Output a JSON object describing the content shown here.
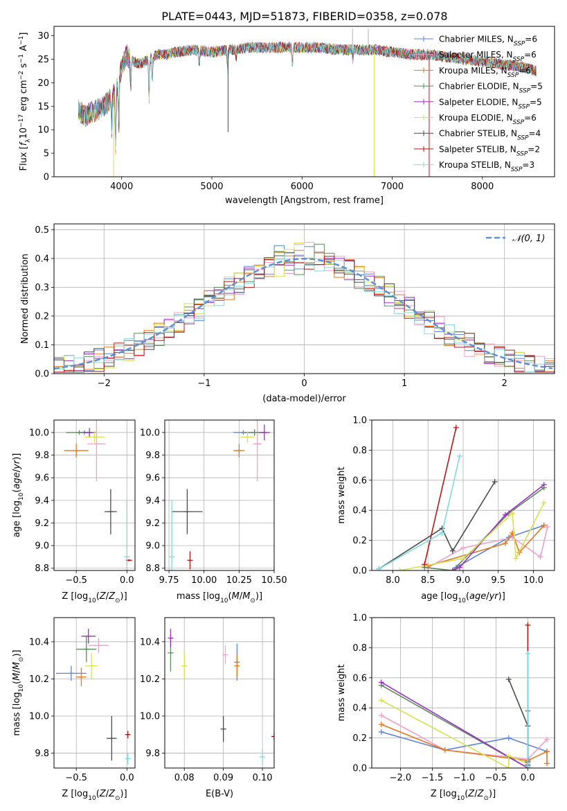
{
  "figure": {
    "title": "PLATE=0443, MJD=51873, FIBERID=0358, z=0.078"
  },
  "colors": {
    "chabrier_miles": "#5b82d6",
    "salpeter_miles": "#f0a0c8",
    "kroupa_miles": "#e07820",
    "chabrier_elodie": "#5a8a5a",
    "salpeter_elodie": "#9a30c0",
    "kroupa_elodie": "#d8e050",
    "chabrier_stelib": "#4a4a4a",
    "salpeter_stelib": "#b01818",
    "kroupa_stelib": "#80d8e0",
    "normal_curve": "#5b8fd8",
    "grid": "#b0b0b0",
    "axis": "#000000"
  },
  "chart_data": [
    {
      "type": "line",
      "id": "spectrum",
      "title": "PLATE=0443, MJD=51873, FIBERID=0358, z=0.078",
      "xlabel": "wavelength [Angstrom, rest frame]",
      "ylabel": "Flux [f_λ10^-17 erg cm^-2 s^-1 A^-1]",
      "xlim": [
        3250,
        8800
      ],
      "ylim": [
        0,
        32
      ],
      "xticks": [
        4000,
        5000,
        6000,
        7000,
        8000
      ],
      "yticks": [
        0,
        5,
        10,
        15,
        20,
        25,
        30
      ],
      "grid": false,
      "legend_position": "top-right",
      "legend": [
        {
          "label": "Chabrier MILES, N",
          "sub": "SSP",
          "suffix": "=6",
          "color_key": "chabrier_miles"
        },
        {
          "label": "Salpeter MILES, N",
          "sub": "SSP",
          "suffix": "=6",
          "color_key": "salpeter_miles"
        },
        {
          "label": "Kroupa MILES, N",
          "sub": "SSP",
          "suffix": "=6",
          "color_key": "kroupa_miles"
        },
        {
          "label": "Chabrier ELODIE, N",
          "sub": "SSP",
          "suffix": "=5",
          "color_key": "chabrier_elodie"
        },
        {
          "label": "Salpeter ELODIE, N",
          "sub": "SSP",
          "suffix": "=5",
          "color_key": "salpeter_elodie"
        },
        {
          "label": "Kroupa ELODIE, N",
          "sub": "SSP",
          "suffix": "=6",
          "color_key": "kroupa_elodie"
        },
        {
          "label": "Chabrier STELIB, N",
          "sub": "SSP",
          "suffix": "=4",
          "color_key": "chabrier_stelib"
        },
        {
          "label": "Salpeter STELIB, N",
          "sub": "SSP",
          "suffix": "=2",
          "color_key": "salpeter_stelib"
        },
        {
          "label": "Kroupa STELIB, N",
          "sub": "SSP",
          "suffix": "=3",
          "color_key": "kroupa_stelib"
        }
      ],
      "continuum": {
        "x": [
          3520,
          3600,
          3700,
          3800,
          3900,
          3950,
          4000,
          4050,
          4100,
          4200,
          4300,
          4400,
          4500,
          4600,
          4800,
          5000,
          5200,
          5400,
          5600,
          5800,
          6000,
          6200,
          6400,
          6600,
          6800,
          7000,
          7200,
          7400,
          7600,
          7800,
          8000,
          8200,
          8400,
          8600
        ],
        "y": [
          14,
          13,
          14,
          15,
          17,
          19,
          23,
          26,
          25,
          24,
          25,
          26,
          26,
          26.5,
          27,
          26.5,
          27,
          27.5,
          27.5,
          27.5,
          27.5,
          27.5,
          27,
          27,
          27,
          26.5,
          26,
          26,
          25.5,
          25,
          24.5,
          24,
          23.5,
          22.5
        ]
      },
      "absorption_lines": [
        {
          "x": 3890,
          "depth": 7
        },
        {
          "x": 3933,
          "depth": 12
        },
        {
          "x": 3968,
          "depth": 10
        },
        {
          "x": 4101,
          "depth": 6
        },
        {
          "x": 4304,
          "depth": 10
        },
        {
          "x": 4340,
          "depth": 5
        },
        {
          "x": 4861,
          "depth": 3
        },
        {
          "x": 5175,
          "depth": 4
        },
        {
          "x": 5270,
          "depth": 2
        },
        {
          "x": 5893,
          "depth": 4
        },
        {
          "x": 6563,
          "depth": 2
        }
      ],
      "spikes": [
        {
          "x": 5180,
          "y": 9.5,
          "color_key": "chabrier_stelib"
        },
        {
          "x": 6560,
          "y": 31.5,
          "color_key": "grid"
        },
        {
          "x": 6735,
          "y": 31.5,
          "color_key": "grid"
        },
        {
          "x": 6800,
          "y": 0,
          "color_key": "kroupa_elodie"
        },
        {
          "x": 3910,
          "y": 0,
          "color_key": "kroupa_elodie"
        },
        {
          "x": 7410,
          "y": 0,
          "color_key": "salpeter_stelib"
        }
      ]
    },
    {
      "type": "bar",
      "id": "residuals",
      "xlabel": "(data-model)/error",
      "ylabel": "Normed distribution",
      "xlim": [
        -2.5,
        2.5
      ],
      "ylim": [
        0,
        0.52
      ],
      "xticks": [
        -2,
        -1,
        0,
        1,
        2
      ],
      "yticks": [
        0.0,
        0.1,
        0.2,
        0.3,
        0.4,
        0.5
      ],
      "grid": true,
      "legend_position": "top-right",
      "legend": [
        {
          "label": "𝒩(0, 1)",
          "color_key": "normal_curve",
          "style": "dashed"
        }
      ],
      "normal_curve": {
        "mean": 0,
        "sigma": 1
      }
    },
    {
      "type": "scatter",
      "id": "age_vs_Z",
      "xlabel": "Z [log10(Z/Z⊙)]",
      "ylabel": "age [log10(age/yr)]",
      "xlim": [
        -0.72,
        0.08
      ],
      "ylim": [
        8.78,
        10.11
      ],
      "xticks": [
        -0.5,
        0.0
      ],
      "yticks": [
        8.8,
        9.0,
        9.2,
        9.4,
        9.6,
        9.8,
        10.0
      ],
      "grid": true,
      "points": [
        {
          "color_key": "chabrier_miles",
          "x": -0.42,
          "y": 10.0,
          "xerr": 0.06,
          "yerr": 0.02
        },
        {
          "color_key": "salpeter_miles",
          "x": -0.3,
          "y": 9.9,
          "xerr": 0.09,
          "yerr": 0.33
        },
        {
          "color_key": "kroupa_miles",
          "x": -0.5,
          "y": 9.84,
          "xerr": 0.12,
          "yerr": 0.06
        },
        {
          "color_key": "chabrier_elodie",
          "x": -0.47,
          "y": 10.0,
          "xerr": 0.13,
          "yerr": 0.02
        },
        {
          "color_key": "salpeter_elodie",
          "x": -0.37,
          "y": 10.0,
          "xerr": 0.06,
          "yerr": 0.04
        },
        {
          "color_key": "kroupa_elodie",
          "x": -0.32,
          "y": 9.96,
          "xerr": 0.1,
          "yerr": 0.05
        },
        {
          "color_key": "chabrier_stelib",
          "x": -0.16,
          "y": 9.3,
          "xerr": 0.06,
          "yerr": 0.2
        },
        {
          "color_key": "salpeter_stelib",
          "x": 0.02,
          "y": 8.87,
          "xerr": 0.03,
          "yerr": 0.01
        },
        {
          "color_key": "kroupa_stelib",
          "x": 0.0,
          "y": 8.9,
          "xerr": 0.02,
          "yerr": 0.5
        }
      ]
    },
    {
      "type": "scatter",
      "id": "age_vs_mass",
      "xlabel": "mass [log10(M/M⊙)]",
      "ylabel": "",
      "xlim": [
        9.72,
        10.5
      ],
      "ylim": [
        8.78,
        10.11
      ],
      "xticks": [
        9.75,
        10.0,
        10.25,
        10.5
      ],
      "xtick_labels": [
        "9.75",
        "10.00",
        "10.25",
        "10.50"
      ],
      "yticks": [
        8.8,
        9.0,
        9.2,
        9.4,
        9.6,
        9.8,
        10.0
      ],
      "grid": true,
      "points": [
        {
          "color_key": "chabrier_miles",
          "x": 10.28,
          "y": 10.0,
          "xerr": 0.07,
          "yerr": 0.02
        },
        {
          "color_key": "salpeter_miles",
          "x": 10.38,
          "y": 9.9,
          "xerr": 0.03,
          "yerr": 0.33
        },
        {
          "color_key": "kroupa_miles",
          "x": 10.25,
          "y": 9.84,
          "xerr": 0.04,
          "yerr": 0.06
        },
        {
          "color_key": "chabrier_elodie",
          "x": 10.36,
          "y": 10.0,
          "xerr": 0.07,
          "yerr": 0.03
        },
        {
          "color_key": "salpeter_elodie",
          "x": 10.43,
          "y": 10.0,
          "xerr": 0.04,
          "yerr": 0.07
        },
        {
          "color_key": "kroupa_elodie",
          "x": 10.31,
          "y": 9.96,
          "xerr": 0.05,
          "yerr": 0.05
        },
        {
          "color_key": "chabrier_stelib",
          "x": 9.88,
          "y": 9.3,
          "xerr": 0.11,
          "yerr": 0.2
        },
        {
          "color_key": "salpeter_stelib",
          "x": 9.9,
          "y": 8.87,
          "xerr": 0.0,
          "yerr": 0.08
        },
        {
          "color_key": "kroupa_stelib",
          "x": 9.77,
          "y": 8.9,
          "xerr": 0.0,
          "yerr": 0.5
        }
      ]
    },
    {
      "type": "line",
      "id": "weights_vs_age",
      "xlabel": "age  [log10(age/yr)]",
      "ylabel": "mass weight",
      "xlim": [
        7.7,
        10.3
      ],
      "ylim": [
        0,
        1.0
      ],
      "xticks": [
        8.0,
        8.5,
        9.0,
        9.5,
        10.0
      ],
      "yticks": [
        0.0,
        0.2,
        0.4,
        0.6,
        0.8,
        1.0
      ],
      "grid": true,
      "series": [
        {
          "color_key": "chabrier_miles",
          "x": [
            8.9,
            9.65,
            10.15
          ],
          "y": [
            0.02,
            0.22,
            0.3
          ]
        },
        {
          "color_key": "salpeter_miles",
          "x": [
            8.5,
            9.0,
            9.7,
            10.1,
            10.2
          ],
          "y": [
            0.02,
            0.15,
            0.22,
            0.09,
            0.29
          ]
        },
        {
          "color_key": "kroupa_miles",
          "x": [
            8.5,
            9.6,
            9.7,
            9.8,
            10.15
          ],
          "y": [
            0.03,
            0.18,
            0.25,
            0.12,
            0.3
          ]
        },
        {
          "color_key": "chabrier_elodie",
          "x": [
            8.45,
            8.85,
            9.65,
            10.15
          ],
          "y": [
            0.02,
            0.0,
            0.38,
            0.55
          ]
        },
        {
          "color_key": "salpeter_elodie",
          "x": [
            8.85,
            8.95,
            9.6,
            10.15
          ],
          "y": [
            0.0,
            0.02,
            0.37,
            0.57
          ]
        },
        {
          "color_key": "kroupa_elodie",
          "x": [
            8.1,
            9.0,
            9.7,
            9.75,
            10.15
          ],
          "y": [
            0.0,
            0.08,
            0.38,
            0.08,
            0.45
          ]
        },
        {
          "color_key": "chabrier_stelib",
          "x": [
            7.8,
            8.7,
            8.85,
            9.45
          ],
          "y": [
            0.01,
            0.28,
            0.13,
            0.59
          ]
        },
        {
          "color_key": "salpeter_stelib",
          "x": [
            8.45,
            8.9
          ],
          "y": [
            0.04,
            0.95
          ]
        },
        {
          "color_key": "kroupa_stelib",
          "x": [
            7.8,
            8.7,
            8.95
          ],
          "y": [
            0.01,
            0.25,
            0.76
          ]
        }
      ]
    },
    {
      "type": "scatter",
      "id": "mass_vs_Z",
      "xlabel": "Z [log10(Z/Z⊙)]",
      "ylabel": "mass [log10(M/M⊙)]",
      "xlim": [
        -0.72,
        0.08
      ],
      "ylim": [
        9.72,
        10.53
      ],
      "xticks": [
        -0.5,
        0.0
      ],
      "yticks": [
        9.8,
        10.0,
        10.2,
        10.4
      ],
      "grid": true,
      "points": [
        {
          "color_key": "chabrier_miles",
          "x": -0.55,
          "y": 10.23,
          "xerr": 0.15,
          "yerr": 0.04
        },
        {
          "color_key": "salpeter_miles",
          "x": -0.28,
          "y": 10.38,
          "xerr": 0.1,
          "yerr": 0.04
        },
        {
          "color_key": "kroupa_miles",
          "x": -0.45,
          "y": 10.21,
          "xerr": 0.05,
          "yerr": 0.05
        },
        {
          "color_key": "chabrier_elodie",
          "x": -0.4,
          "y": 10.36,
          "xerr": 0.1,
          "yerr": 0.07
        },
        {
          "color_key": "salpeter_elodie",
          "x": -0.38,
          "y": 10.43,
          "xerr": 0.07,
          "yerr": 0.04
        },
        {
          "color_key": "kroupa_elodie",
          "x": -0.35,
          "y": 10.27,
          "xerr": 0.06,
          "yerr": 0.07
        },
        {
          "color_key": "chabrier_stelib",
          "x": -0.15,
          "y": 9.88,
          "xerr": 0.05,
          "yerr": 0.12
        },
        {
          "color_key": "salpeter_stelib",
          "x": 0.01,
          "y": 9.9,
          "xerr": 0.02,
          "yerr": 0.02
        },
        {
          "color_key": "kroupa_stelib",
          "x": 0.01,
          "y": 9.77,
          "xerr": 0.02,
          "yerr": 0.03
        }
      ]
    },
    {
      "type": "scatter",
      "id": "mass_vs_ebv",
      "xlabel": "E(B-V)",
      "ylabel": "",
      "xlim": [
        0.075,
        0.103
      ],
      "ylim": [
        9.72,
        10.53
      ],
      "xticks": [
        0.08,
        0.09,
        0.1
      ],
      "xtick_labels": [
        "0.08",
        "0.09",
        "0.10"
      ],
      "yticks": [
        9.8,
        10.0,
        10.2,
        10.4
      ],
      "grid": true,
      "points": [
        {
          "color_key": "chabrier_miles",
          "x": 0.0935,
          "y": 10.29,
          "xerr": 0.0,
          "yerr": 0.1
        },
        {
          "color_key": "salpeter_miles",
          "x": 0.0905,
          "y": 10.33,
          "xerr": 0.0,
          "yerr": 0.05
        },
        {
          "color_key": "kroupa_miles",
          "x": 0.0935,
          "y": 10.27,
          "xerr": 0.0,
          "yerr": 0.06
        },
        {
          "color_key": "chabrier_elodie",
          "x": 0.0765,
          "y": 10.34,
          "xerr": 0.0,
          "yerr": 0.1
        },
        {
          "color_key": "salpeter_elodie",
          "x": 0.0765,
          "y": 10.42,
          "xerr": 0.0,
          "yerr": 0.05
        },
        {
          "color_key": "kroupa_elodie",
          "x": 0.08,
          "y": 10.27,
          "xerr": 0.0,
          "yerr": 0.07
        },
        {
          "color_key": "chabrier_stelib",
          "x": 0.09,
          "y": 9.93,
          "xerr": 0.0,
          "yerr": 0.07
        },
        {
          "color_key": "salpeter_stelib",
          "x": 0.103,
          "y": 9.89,
          "xerr": 0.0,
          "yerr": 0.02
        },
        {
          "color_key": "kroupa_stelib",
          "x": 0.1,
          "y": 9.78,
          "xerr": 0.0,
          "yerr": 0.04
        }
      ]
    },
    {
      "type": "line",
      "id": "weights_vs_Z",
      "xlabel": "Z [log10(Z/Z⊙)]",
      "ylabel": "mass weight",
      "xlim": [
        -2.45,
        0.42
      ],
      "ylim": [
        0,
        1.0
      ],
      "xticks": [
        -2.0,
        -1.5,
        -1.0,
        -0.5,
        0.0
      ],
      "yticks": [
        0.0,
        0.2,
        0.4,
        0.6,
        0.8,
        1.0
      ],
      "grid": true,
      "series": [
        {
          "color_key": "chabrier_miles",
          "x": [
            -2.3,
            -1.3,
            -0.3,
            0.3
          ],
          "y": [
            0.24,
            0.12,
            0.2,
            0.11
          ]
        },
        {
          "color_key": "salpeter_miles",
          "x": [
            -2.3,
            -1.3,
            0.0,
            0.3
          ],
          "y": [
            0.35,
            0.12,
            0.06,
            0.19
          ]
        },
        {
          "color_key": "kroupa_miles",
          "x": [
            -2.3,
            -1.3,
            0.0,
            0.3,
            0.3
          ],
          "y": [
            0.29,
            0.12,
            0.05,
            0.11,
            0.03
          ]
        },
        {
          "color_key": "chabrier_elodie",
          "x": [
            -2.3,
            0.0,
            0.0
          ],
          "y": [
            0.55,
            0.0,
            0.38
          ]
        },
        {
          "color_key": "salpeter_elodie",
          "x": [
            -2.3,
            0.0,
            0.0
          ],
          "y": [
            0.57,
            0.0,
            0.02
          ]
        },
        {
          "color_key": "kroupa_elodie",
          "x": [
            -2.3,
            -0.3,
            -0.3,
            0.0
          ],
          "y": [
            0.45,
            0.0,
            0.08,
            0.03
          ]
        },
        {
          "color_key": "chabrier_stelib",
          "x": [
            -0.3,
            0.0,
            0.0
          ],
          "y": [
            0.59,
            0.28,
            0.02
          ]
        },
        {
          "color_key": "salpeter_stelib",
          "x": [
            0.0,
            0.0
          ],
          "y": [
            0.95,
            0.04
          ]
        },
        {
          "color_key": "kroupa_stelib",
          "x": [
            0.0,
            0.0
          ],
          "y": [
            0.76,
            0.01
          ]
        }
      ]
    }
  ]
}
